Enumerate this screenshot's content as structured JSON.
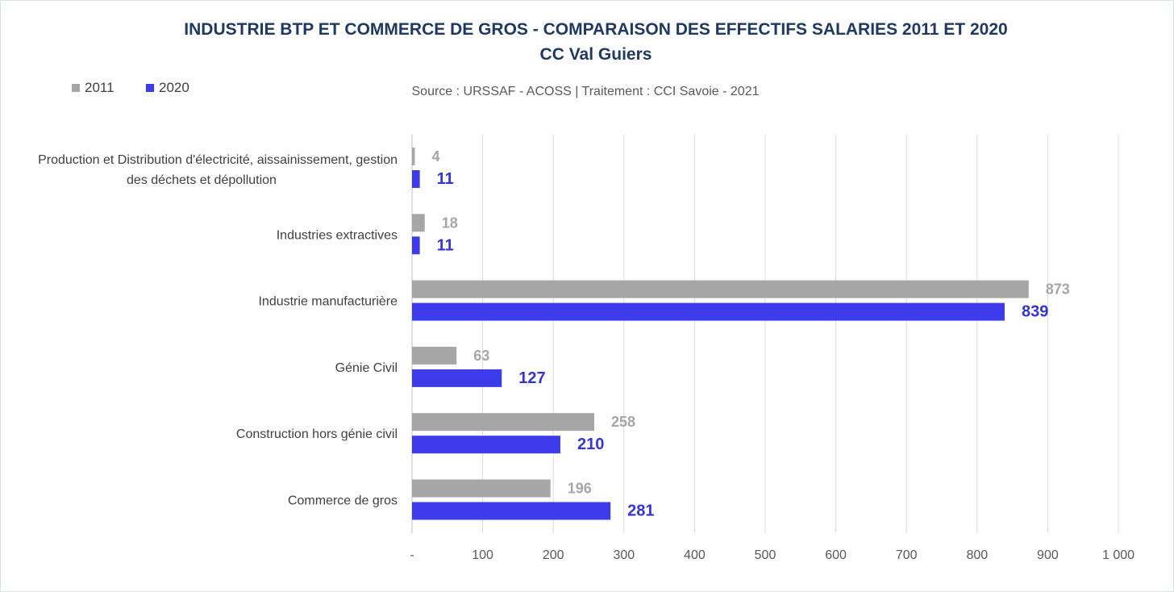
{
  "chart_data": {
    "type": "bar",
    "orientation": "horizontal",
    "title": "INDUSTRIE BTP ET COMMERCE DE GROS - COMPARAISON DES EFFECTIFS SALARIES 2011 ET 2020",
    "subtitle": "CC Val Guiers",
    "source": "Source : URSSAF - ACOSS  |  Traitement : CCI Savoie - 2021",
    "categories": [
      "Production et Distribution d'électricité, aissainissement, gestion des déchets et dépollution",
      "Industries extractives",
      "Industrie manufacturière",
      "Génie Civil",
      "Construction hors génie civil",
      "Commerce de gros"
    ],
    "category_lines": [
      [
        "Production et Distribution d'électricité, aissainissement, gestion",
        "des déchets et dépollution"
      ],
      [
        "Industries extractives"
      ],
      [
        "Industrie manufacturière"
      ],
      [
        "Génie Civil"
      ],
      [
        "Construction hors génie civil"
      ],
      [
        "Commerce de gros"
      ]
    ],
    "series": [
      {
        "name": "2011",
        "color": "#a6a6a6",
        "label_color": "#a6a6a6",
        "values": [
          4,
          18,
          873,
          63,
          258,
          196
        ]
      },
      {
        "name": "2020",
        "color": "#3c3cea",
        "label_color": "#3535d6",
        "values": [
          11,
          11,
          839,
          127,
          210,
          281
        ]
      }
    ],
    "xlim": [
      0,
      1000
    ],
    "x_ticks": [
      0,
      100,
      200,
      300,
      400,
      500,
      600,
      700,
      800,
      900,
      1000
    ],
    "x_tick_labels": [
      "-",
      "100",
      "200",
      "300",
      "400",
      "500",
      "600",
      "700",
      "800",
      "900",
      "1 000"
    ],
    "grid": "vertical",
    "legend_position": "top-left"
  }
}
